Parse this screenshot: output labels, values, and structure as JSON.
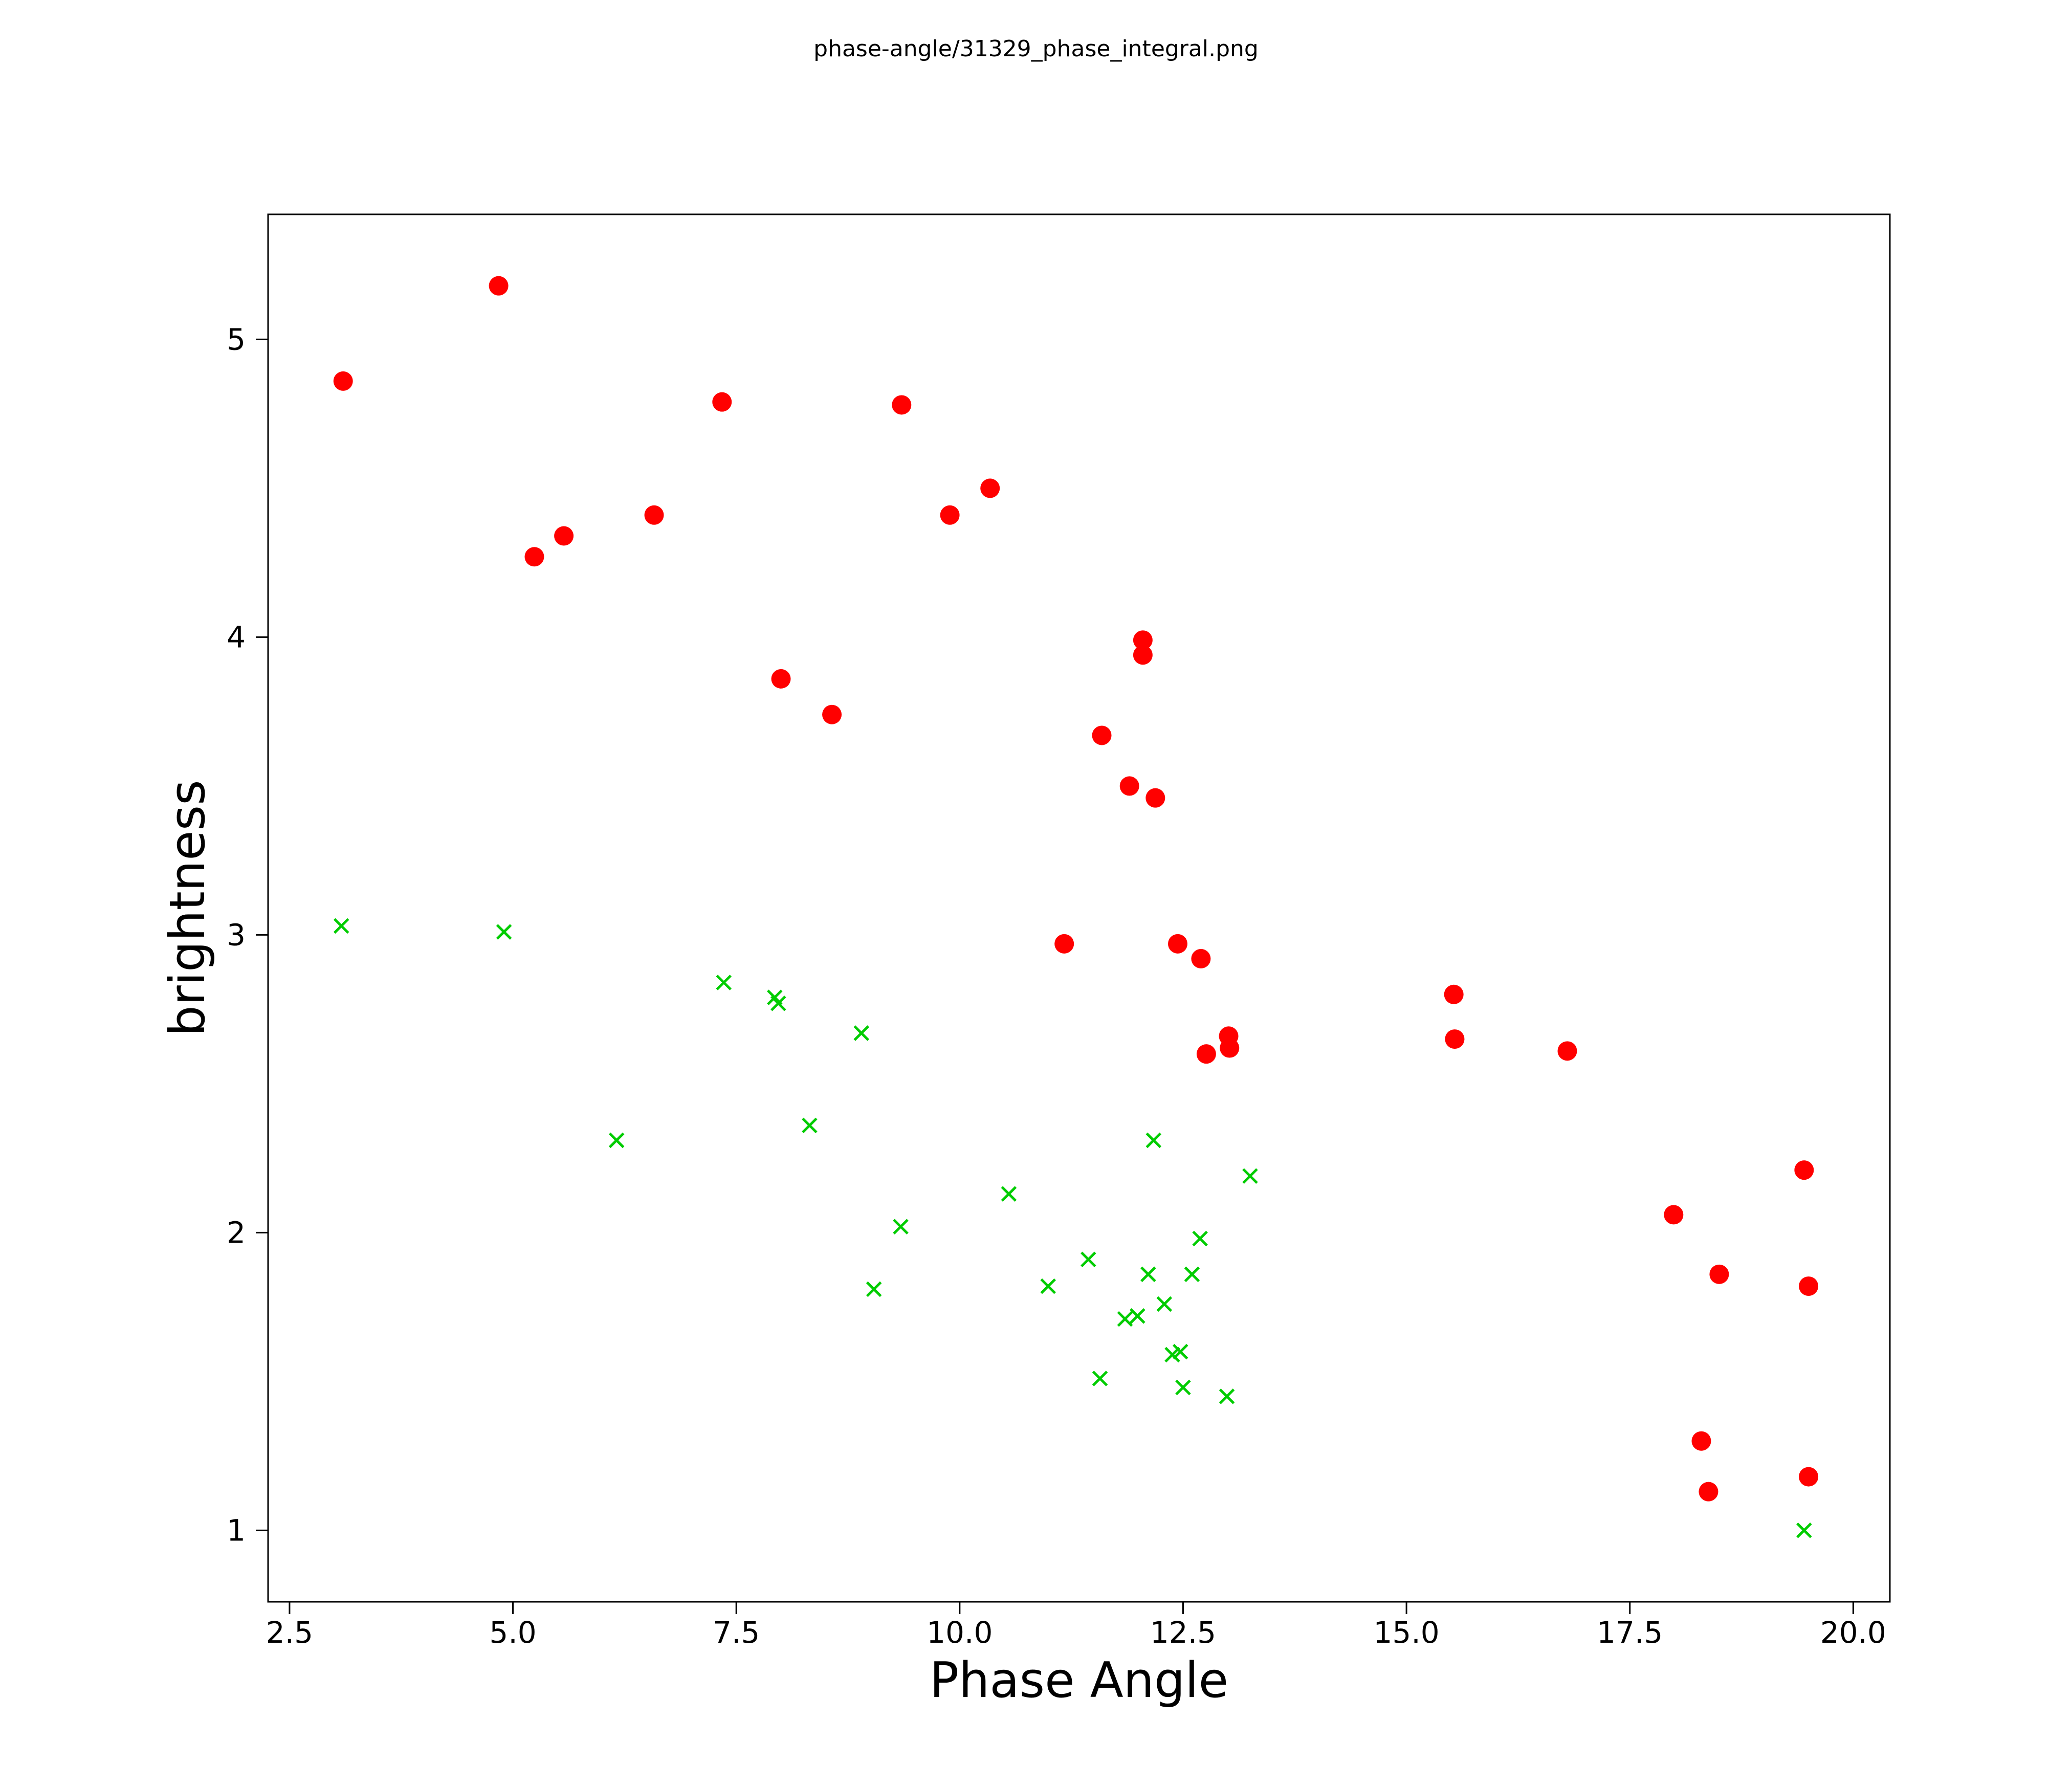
{
  "chart_data": {
    "type": "scatter",
    "title": "phase-angle/31329_phase_integral.png",
    "xlabel": "Phase Angle",
    "ylabel": "brightness",
    "xlim": [
      2.26,
      20.41
    ],
    "ylim": [
      0.76,
      5.42
    ],
    "x_ticks": [
      2.5,
      5.0,
      7.5,
      10.0,
      12.5,
      15.0,
      17.5,
      20.0
    ],
    "x_tick_labels": [
      "2.5",
      "5.0",
      "7.5",
      "10.0",
      "12.5",
      "15.0",
      "17.5",
      "20.0"
    ],
    "y_ticks": [
      1,
      2,
      3,
      4,
      5
    ],
    "y_tick_labels": [
      "1",
      "2",
      "3",
      "4",
      "5"
    ],
    "grid": false,
    "legend": "none",
    "frame_color": "#000000",
    "series": [
      {
        "name": "red-circles",
        "marker": "circle",
        "color": "#ff0000",
        "points": [
          [
            3.1,
            4.86
          ],
          [
            4.84,
            5.18
          ],
          [
            5.24,
            4.27
          ],
          [
            5.57,
            4.34
          ],
          [
            6.58,
            4.41
          ],
          [
            7.34,
            4.79
          ],
          [
            8.0,
            3.86
          ],
          [
            8.57,
            3.74
          ],
          [
            9.35,
            4.78
          ],
          [
            9.89,
            4.41
          ],
          [
            10.34,
            4.5
          ],
          [
            11.17,
            2.97
          ],
          [
            11.59,
            3.67
          ],
          [
            11.9,
            3.5
          ],
          [
            12.05,
            3.99
          ],
          [
            12.05,
            3.94
          ],
          [
            12.19,
            3.46
          ],
          [
            12.44,
            2.97
          ],
          [
            12.7,
            2.92
          ],
          [
            12.76,
            2.6
          ],
          [
            13.01,
            2.66
          ],
          [
            13.02,
            2.62
          ],
          [
            15.53,
            2.8
          ],
          [
            15.54,
            2.65
          ],
          [
            16.8,
            2.61
          ],
          [
            17.99,
            2.06
          ],
          [
            18.3,
            1.3
          ],
          [
            18.38,
            1.13
          ],
          [
            18.5,
            1.86
          ],
          [
            19.45,
            2.21
          ],
          [
            19.5,
            1.82
          ],
          [
            19.5,
            1.18
          ]
        ]
      },
      {
        "name": "green-crosses",
        "marker": "x",
        "color": "#00cc00",
        "points": [
          [
            3.08,
            3.03
          ],
          [
            4.9,
            3.01
          ],
          [
            6.16,
            2.31
          ],
          [
            7.36,
            2.84
          ],
          [
            7.93,
            2.79
          ],
          [
            7.97,
            2.77
          ],
          [
            8.32,
            2.36
          ],
          [
            8.9,
            2.67
          ],
          [
            9.04,
            1.81
          ],
          [
            9.34,
            2.02
          ],
          [
            10.55,
            2.13
          ],
          [
            10.99,
            1.82
          ],
          [
            11.44,
            1.91
          ],
          [
            11.57,
            1.51
          ],
          [
            11.85,
            1.71
          ],
          [
            11.99,
            1.72
          ],
          [
            12.11,
            1.86
          ],
          [
            12.17,
            2.31
          ],
          [
            12.29,
            1.76
          ],
          [
            12.38,
            1.59
          ],
          [
            12.47,
            1.6
          ],
          [
            12.5,
            1.48
          ],
          [
            12.6,
            1.86
          ],
          [
            12.69,
            1.98
          ],
          [
            12.99,
            1.45
          ],
          [
            13.25,
            2.19
          ],
          [
            19.45,
            1.0
          ]
        ]
      }
    ]
  }
}
